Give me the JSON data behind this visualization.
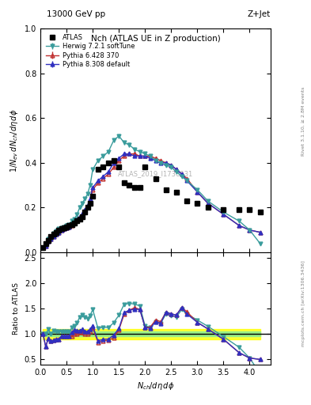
{
  "title_main": "Nch (ATLAS UE in Z production)",
  "top_left_label": "13000 GeV pp",
  "top_right_label": "Z+Jet",
  "right_label_top": "Rivet 3.1.10, ≥ 2.8M events",
  "right_label_bottom": "mcplots.cern.ch [arXiv:1306.3436]",
  "watermark": "ATLAS_2019_I1736531",
  "ylabel_main": "1/N_ev dN_ch/dη dφ",
  "ylabel_ratio": "Ratio to ATLAS",
  "xlabel": "N_ch/dη dφ",
  "ylim_main": [
    0,
    1.0
  ],
  "ylim_ratio": [
    0.4,
    2.5
  ],
  "atlas_x": [
    0.05,
    0.1,
    0.15,
    0.2,
    0.25,
    0.3,
    0.35,
    0.4,
    0.45,
    0.5,
    0.55,
    0.6,
    0.65,
    0.7,
    0.75,
    0.8,
    0.85,
    0.9,
    0.95,
    1.0,
    1.1,
    1.2,
    1.3,
    1.4,
    1.5,
    1.6,
    1.7,
    1.8,
    1.9,
    2.0,
    2.2,
    2.4,
    2.6,
    2.8,
    3.0,
    3.2,
    3.5,
    3.8,
    4.0,
    4.2
  ],
  "atlas_y": [
    0.02,
    0.04,
    0.055,
    0.07,
    0.08,
    0.09,
    0.1,
    0.105,
    0.11,
    0.115,
    0.12,
    0.125,
    0.13,
    0.14,
    0.15,
    0.16,
    0.18,
    0.2,
    0.22,
    0.25,
    0.37,
    0.38,
    0.4,
    0.41,
    0.38,
    0.31,
    0.3,
    0.29,
    0.29,
    0.38,
    0.33,
    0.28,
    0.27,
    0.23,
    0.22,
    0.2,
    0.19,
    0.19,
    0.19,
    0.18
  ],
  "herwig_x": [
    0.05,
    0.1,
    0.15,
    0.2,
    0.25,
    0.3,
    0.35,
    0.4,
    0.45,
    0.5,
    0.55,
    0.6,
    0.65,
    0.7,
    0.75,
    0.8,
    0.85,
    0.9,
    0.95,
    1.0,
    1.1,
    1.2,
    1.3,
    1.4,
    1.5,
    1.6,
    1.7,
    1.8,
    1.9,
    2.0,
    2.1,
    2.2,
    2.3,
    2.4,
    2.5,
    2.6,
    2.7,
    2.8,
    3.0,
    3.2,
    3.5,
    3.8,
    4.0,
    4.2
  ],
  "herwig_y": [
    0.02,
    0.04,
    0.06,
    0.07,
    0.085,
    0.095,
    0.105,
    0.11,
    0.115,
    0.12,
    0.125,
    0.14,
    0.15,
    0.17,
    0.2,
    0.22,
    0.24,
    0.26,
    0.3,
    0.37,
    0.41,
    0.43,
    0.45,
    0.5,
    0.52,
    0.49,
    0.48,
    0.46,
    0.45,
    0.44,
    0.43,
    0.41,
    0.4,
    0.39,
    0.38,
    0.36,
    0.34,
    0.32,
    0.28,
    0.23,
    0.18,
    0.14,
    0.1,
    0.04
  ],
  "pythia6_x": [
    0.05,
    0.1,
    0.15,
    0.2,
    0.25,
    0.3,
    0.35,
    0.4,
    0.45,
    0.5,
    0.55,
    0.6,
    0.65,
    0.7,
    0.75,
    0.8,
    0.85,
    0.9,
    0.95,
    1.0,
    1.1,
    1.2,
    1.3,
    1.4,
    1.5,
    1.6,
    1.7,
    1.8,
    1.9,
    2.0,
    2.1,
    2.2,
    2.3,
    2.4,
    2.5,
    2.6,
    2.7,
    2.8,
    3.0,
    3.2,
    3.5,
    3.8,
    4.0,
    4.2
  ],
  "pythia6_y": [
    0.02,
    0.03,
    0.05,
    0.06,
    0.07,
    0.08,
    0.09,
    0.1,
    0.105,
    0.11,
    0.115,
    0.12,
    0.13,
    0.14,
    0.155,
    0.165,
    0.18,
    0.2,
    0.23,
    0.28,
    0.31,
    0.33,
    0.35,
    0.38,
    0.41,
    0.43,
    0.44,
    0.44,
    0.43,
    0.43,
    0.43,
    0.42,
    0.41,
    0.4,
    0.39,
    0.37,
    0.35,
    0.33,
    0.27,
    0.22,
    0.17,
    0.12,
    0.1,
    0.09
  ],
  "pythia8_x": [
    0.05,
    0.1,
    0.15,
    0.2,
    0.25,
    0.3,
    0.35,
    0.4,
    0.45,
    0.5,
    0.55,
    0.6,
    0.65,
    0.7,
    0.75,
    0.8,
    0.85,
    0.9,
    0.95,
    1.0,
    1.1,
    1.2,
    1.3,
    1.4,
    1.5,
    1.6,
    1.7,
    1.8,
    1.9,
    2.0,
    2.1,
    2.2,
    2.3,
    2.4,
    2.5,
    2.6,
    2.7,
    2.8,
    3.0,
    3.2,
    3.5,
    3.8,
    4.0,
    4.2
  ],
  "pythia8_y": [
    0.02,
    0.03,
    0.05,
    0.06,
    0.07,
    0.08,
    0.09,
    0.1,
    0.105,
    0.11,
    0.115,
    0.13,
    0.14,
    0.15,
    0.16,
    0.175,
    0.19,
    0.21,
    0.24,
    0.29,
    0.32,
    0.34,
    0.36,
    0.4,
    0.42,
    0.44,
    0.44,
    0.43,
    0.43,
    0.43,
    0.42,
    0.41,
    0.4,
    0.4,
    0.39,
    0.37,
    0.35,
    0.32,
    0.27,
    0.22,
    0.17,
    0.12,
    0.1,
    0.09
  ],
  "herwig_color": "#3a9c9c",
  "pythia6_color": "#c03030",
  "pythia8_color": "#3030c0",
  "atlas_color": "#000000",
  "band_x": [
    0.05,
    0.1,
    0.2,
    0.3,
    0.4,
    0.5,
    0.6,
    0.7,
    0.8,
    0.9,
    1.0,
    1.2,
    1.4,
    1.6,
    1.8,
    2.0,
    2.4,
    2.8,
    3.2,
    4.0,
    4.2
  ],
  "band_green": [
    0.05,
    0.05,
    0.05,
    0.05,
    0.05,
    0.05,
    0.05,
    0.05,
    0.05,
    0.05,
    0.05,
    0.05,
    0.05,
    0.05,
    0.05,
    0.05,
    0.05,
    0.05,
    0.05,
    0.05,
    0.05
  ],
  "band_yellow": [
    0.1,
    0.1,
    0.1,
    0.1,
    0.1,
    0.1,
    0.1,
    0.1,
    0.1,
    0.1,
    0.1,
    0.1,
    0.1,
    0.1,
    0.1,
    0.1,
    0.1,
    0.1,
    0.1,
    0.1,
    0.1
  ]
}
